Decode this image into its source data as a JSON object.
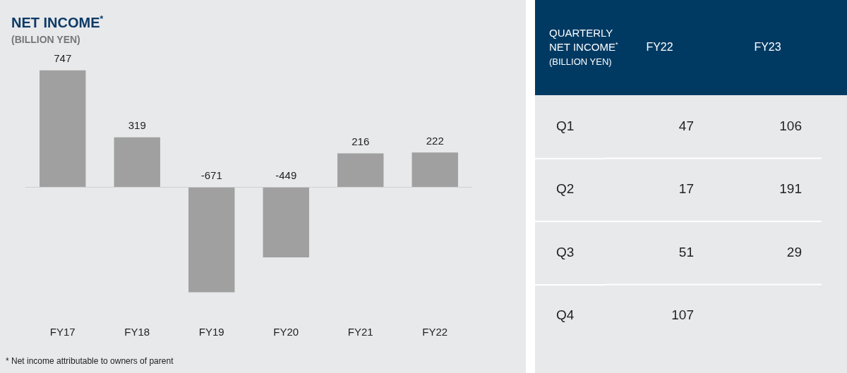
{
  "chart_data": [
    {
      "type": "bar",
      "title": "NET INCOME$^{*}$",
      "subtitle": "(BILLION YEN)",
      "categories": [
        "FY17",
        "FY18",
        "FY19",
        "FY20",
        "FY21",
        "FY22"
      ],
      "values": [
        747,
        319,
        -671,
        -449,
        216,
        222
      ],
      "color": "#a0a0a0",
      "data_labels": true,
      "grid": false,
      "legend": false,
      "tick_labels": "x",
      "annotations": [
        "* Net income attributable to owners of parent"
      ]
    },
    {
      "type": "heatmap",
      "title": "QUARTERLY NET INCOME$^{*}$",
      "subtitle": "(BILLION YEN)",
      "categories": [
        "FY22",
        "FY23"
      ],
      "y_categories": [
        "Q1",
        "Q2",
        "Q3",
        "Q4"
      ],
      "cells": [
        [
          47,
          106
        ],
        [
          17,
          191
        ],
        [
          51,
          29
        ],
        [
          107,
          null
        ]
      ],
      "data_labels": true,
      "legend": false
    }
  ]
}
